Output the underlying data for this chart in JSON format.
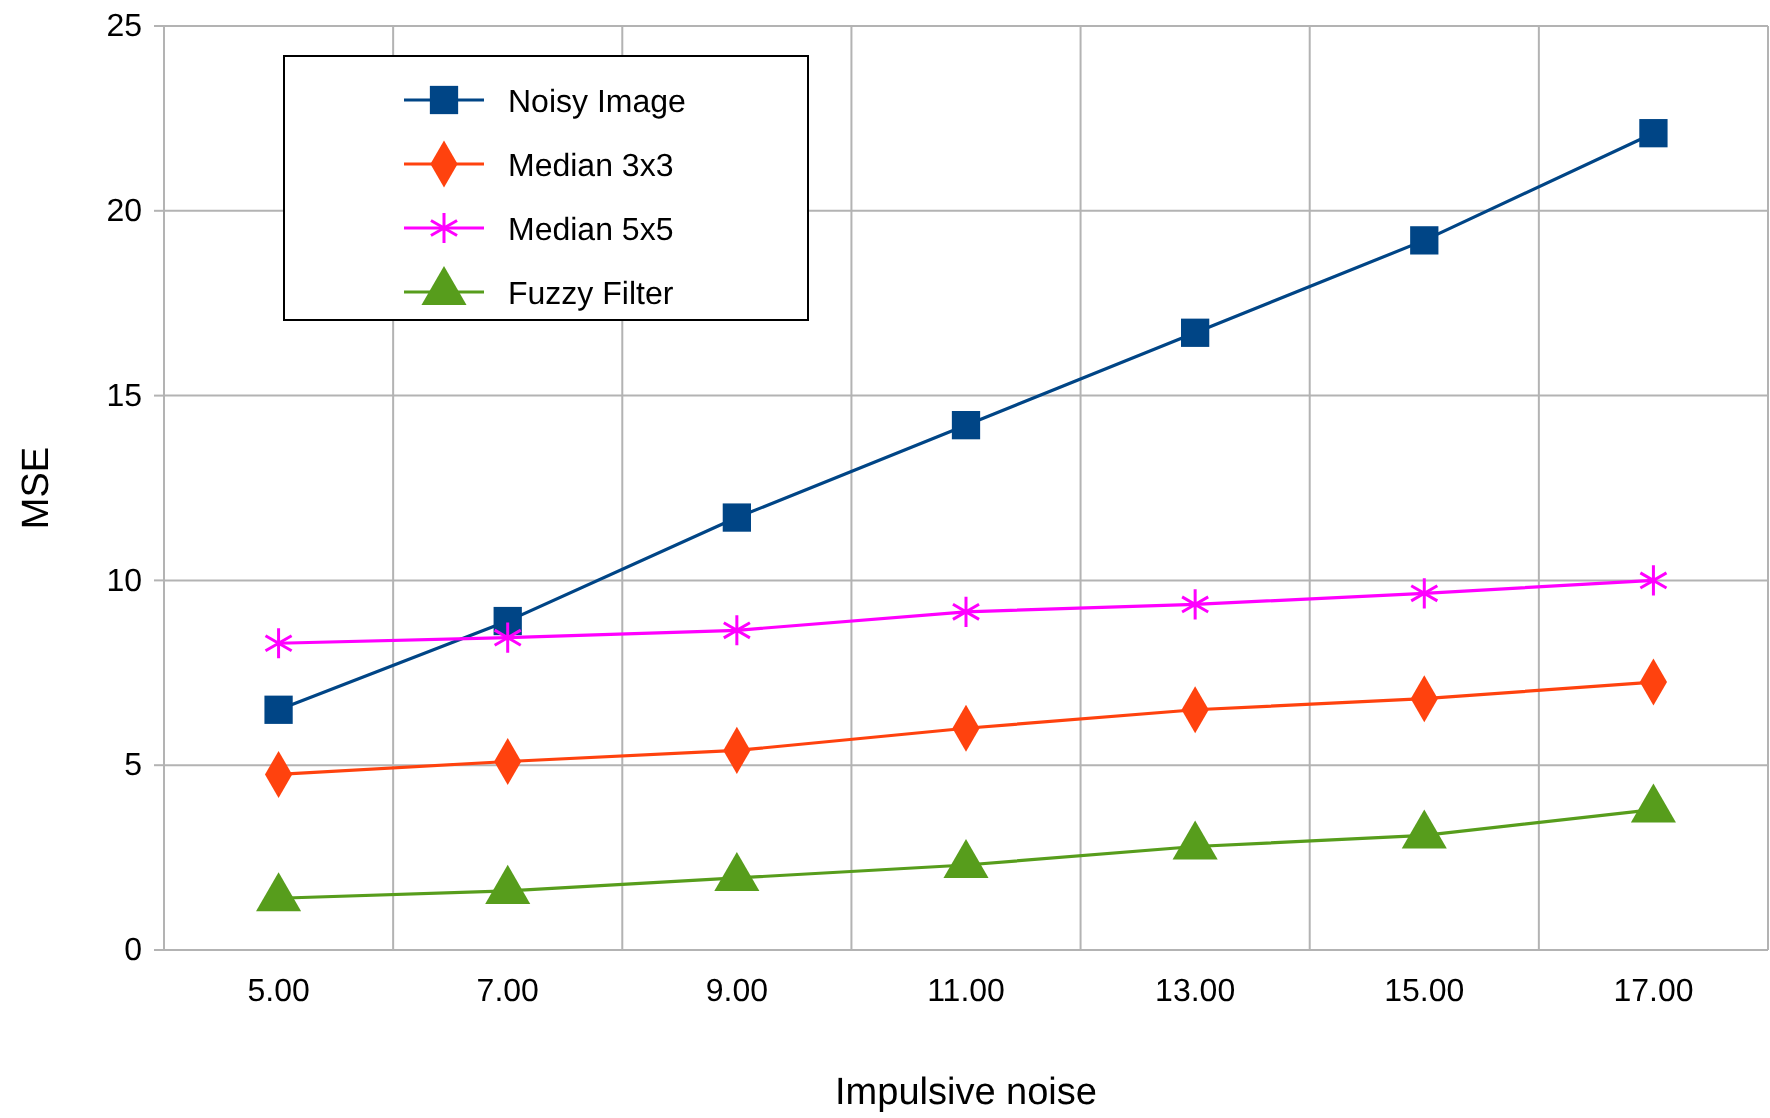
{
  "chart_data": {
    "type": "line",
    "xlabel": "Impulsive noise",
    "ylabel": "MSE",
    "categories": [
      "5.00",
      "7.00",
      "9.00",
      "11.00",
      "13.00",
      "15.00",
      "17.00"
    ],
    "ylim": [
      0,
      25
    ],
    "yticks": [
      0,
      5,
      10,
      15,
      20,
      25
    ],
    "grid": true,
    "legend": "top left",
    "series": [
      {
        "name": "Noisy Image",
        "color": "#004586",
        "marker": "square",
        "values": [
          6.5,
          8.9,
          11.7,
          14.2,
          16.7,
          19.2,
          22.1
        ]
      },
      {
        "name": "Median 3x3",
        "color": "#ff420e",
        "marker": "diamond",
        "values": [
          4.75,
          5.1,
          5.4,
          6.0,
          6.5,
          6.8,
          7.25
        ]
      },
      {
        "name": "Median 5x5",
        "color": "#ff00ff",
        "marker": "cross",
        "values": [
          8.3,
          8.45,
          8.65,
          9.15,
          9.35,
          9.65,
          10.0
        ]
      },
      {
        "name": "Fuzzy Filter",
        "color": "#579d1c",
        "marker": "triangle",
        "values": [
          1.4,
          1.6,
          1.95,
          2.3,
          2.8,
          3.1,
          3.8
        ]
      }
    ]
  }
}
